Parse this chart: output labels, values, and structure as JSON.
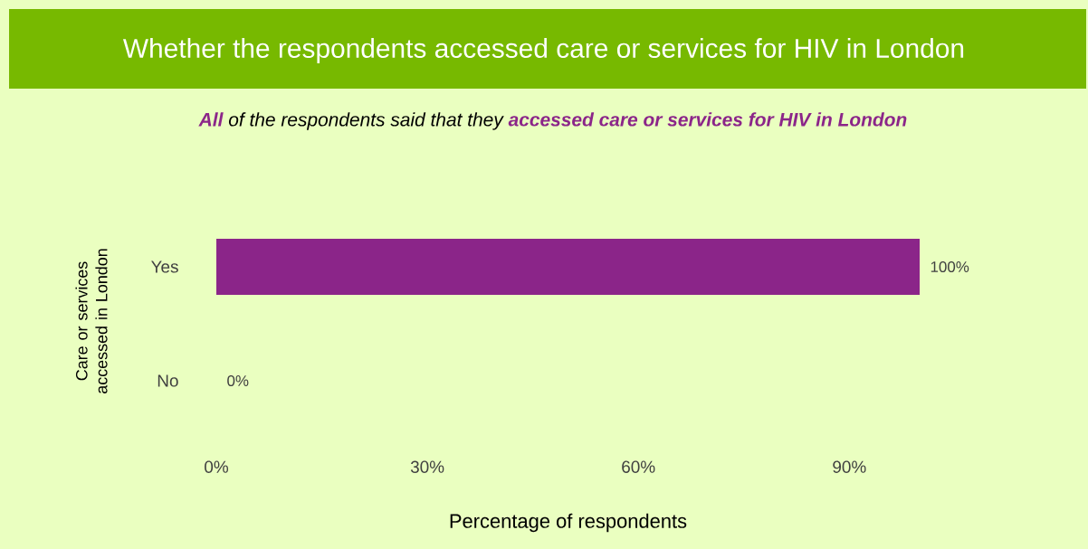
{
  "chart_data": {
    "type": "bar",
    "orientation": "horizontal",
    "title": "Whether the respondents accessed care or services for HIV in London",
    "subtitle": "**All** of the respondents said that they **accessed care or services for HIV in London**",
    "categories": [
      "Yes",
      "No"
    ],
    "values": [
      100,
      0
    ],
    "value_labels": [
      "100%",
      "0%"
    ],
    "color": "#8b2589",
    "xlabel": "Percentage of respondents",
    "ylabel": "Care or services accessed in London",
    "xlim": [
      0,
      100
    ],
    "xticks": [
      {
        "value": 0,
        "label": "0%"
      },
      {
        "value": 30,
        "label": "30%"
      },
      {
        "value": 60,
        "label": "60%"
      },
      {
        "value": 90,
        "label": "90%"
      }
    ],
    "grid": false
  }
}
